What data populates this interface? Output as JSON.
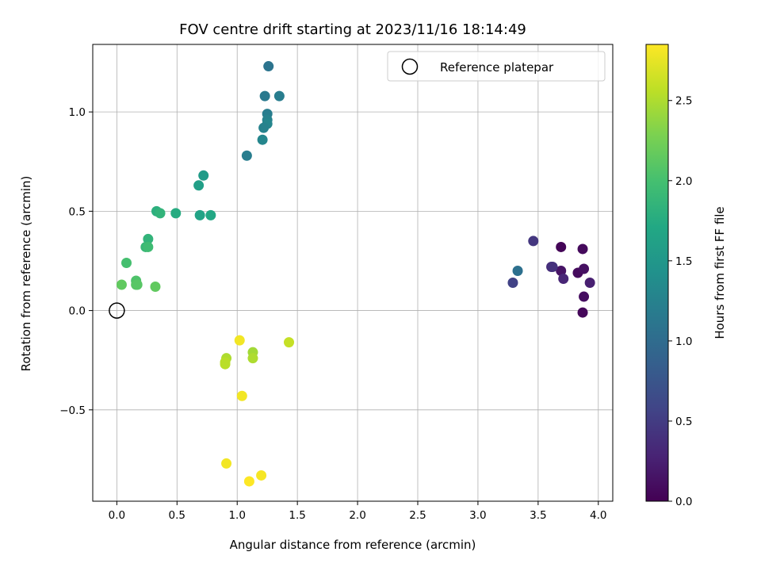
{
  "chart_data": {
    "type": "scatter",
    "title": "FOV centre drift starting at 2023/11/16 18:14:49",
    "xlabel": "Angular distance from reference (arcmin)",
    "ylabel": "Rotation from reference (arcmin)",
    "xlim": [
      -0.2,
      4.12
    ],
    "ylim": [
      -0.96,
      1.34
    ],
    "xticks": [
      "0.0",
      "0.5",
      "1.0",
      "1.5",
      "2.0",
      "2.5",
      "3.0",
      "3.5",
      "4.0"
    ],
    "yticks": [
      "−0.5",
      "0.0",
      "0.5",
      "1.0"
    ],
    "grid": true,
    "legend": {
      "placement": "top-right",
      "label": "Reference platepar"
    },
    "reference_point": {
      "x": 0.0,
      "y": 0.0
    },
    "colorbar": {
      "label": "Hours from first FF file",
      "colormap": "viridis",
      "range": [
        0.0,
        2.85
      ],
      "ticks": [
        "0.0",
        "0.5",
        "1.0",
        "1.5",
        "2.0",
        "2.5"
      ]
    },
    "points": [
      {
        "x": 3.87,
        "y": -0.01,
        "hours": 0.05
      },
      {
        "x": 3.88,
        "y": 0.07,
        "hours": 0.1
      },
      {
        "x": 3.83,
        "y": 0.19,
        "hours": 0.08
      },
      {
        "x": 3.88,
        "y": 0.21,
        "hours": 0.12
      },
      {
        "x": 3.69,
        "y": 0.2,
        "hours": 0.15
      },
      {
        "x": 3.69,
        "y": 0.32,
        "hours": 0.03
      },
      {
        "x": 3.87,
        "y": 0.31,
        "hours": 0.07
      },
      {
        "x": 3.93,
        "y": 0.14,
        "hours": 0.25
      },
      {
        "x": 3.71,
        "y": 0.16,
        "hours": 0.3
      },
      {
        "x": 3.61,
        "y": 0.22,
        "hours": 0.35
      },
      {
        "x": 3.62,
        "y": 0.22,
        "hours": 0.4
      },
      {
        "x": 3.46,
        "y": 0.35,
        "hours": 0.45
      },
      {
        "x": 3.29,
        "y": 0.14,
        "hours": 0.55
      },
      {
        "x": 3.33,
        "y": 0.2,
        "hours": 1.05
      },
      {
        "x": 1.26,
        "y": 1.23,
        "hours": 1.1
      },
      {
        "x": 1.23,
        "y": 1.08,
        "hours": 1.15
      },
      {
        "x": 1.35,
        "y": 1.08,
        "hours": 1.2
      },
      {
        "x": 1.25,
        "y": 0.99,
        "hours": 1.2
      },
      {
        "x": 1.25,
        "y": 0.96,
        "hours": 1.25
      },
      {
        "x": 1.25,
        "y": 0.94,
        "hours": 1.3
      },
      {
        "x": 1.22,
        "y": 0.92,
        "hours": 1.25
      },
      {
        "x": 1.21,
        "y": 0.86,
        "hours": 1.3
      },
      {
        "x": 1.08,
        "y": 0.78,
        "hours": 1.2
      },
      {
        "x": 0.72,
        "y": 0.68,
        "hours": 1.55
      },
      {
        "x": 0.68,
        "y": 0.63,
        "hours": 1.6
      },
      {
        "x": 0.69,
        "y": 0.48,
        "hours": 1.65
      },
      {
        "x": 0.78,
        "y": 0.48,
        "hours": 1.7
      },
      {
        "x": 0.49,
        "y": 0.49,
        "hours": 1.75
      },
      {
        "x": 0.33,
        "y": 0.5,
        "hours": 1.8
      },
      {
        "x": 0.36,
        "y": 0.49,
        "hours": 1.85
      },
      {
        "x": 0.26,
        "y": 0.36,
        "hours": 1.85
      },
      {
        "x": 0.24,
        "y": 0.32,
        "hours": 1.9
      },
      {
        "x": 0.26,
        "y": 0.32,
        "hours": 1.95
      },
      {
        "x": 0.08,
        "y": 0.24,
        "hours": 2.0
      },
      {
        "x": 0.16,
        "y": 0.15,
        "hours": 2.05
      },
      {
        "x": 0.16,
        "y": 0.13,
        "hours": 2.1
      },
      {
        "x": 0.17,
        "y": 0.13,
        "hours": 2.1
      },
      {
        "x": 0.04,
        "y": 0.13,
        "hours": 2.15
      },
      {
        "x": 0.32,
        "y": 0.12,
        "hours": 2.15
      },
      {
        "x": 1.13,
        "y": -0.21,
        "hours": 2.45
      },
      {
        "x": 1.13,
        "y": -0.24,
        "hours": 2.5
      },
      {
        "x": 0.91,
        "y": -0.24,
        "hours": 2.5
      },
      {
        "x": 0.9,
        "y": -0.26,
        "hours": 2.55
      },
      {
        "x": 0.9,
        "y": -0.27,
        "hours": 2.55
      },
      {
        "x": 1.02,
        "y": -0.15,
        "hours": 2.8
      },
      {
        "x": 1.43,
        "y": -0.16,
        "hours": 2.6
      },
      {
        "x": 1.04,
        "y": -0.43,
        "hours": 2.8
      },
      {
        "x": 0.91,
        "y": -0.77,
        "hours": 2.8
      },
      {
        "x": 1.2,
        "y": -0.83,
        "hours": 2.82
      },
      {
        "x": 1.1,
        "y": -0.86,
        "hours": 2.85
      }
    ]
  }
}
